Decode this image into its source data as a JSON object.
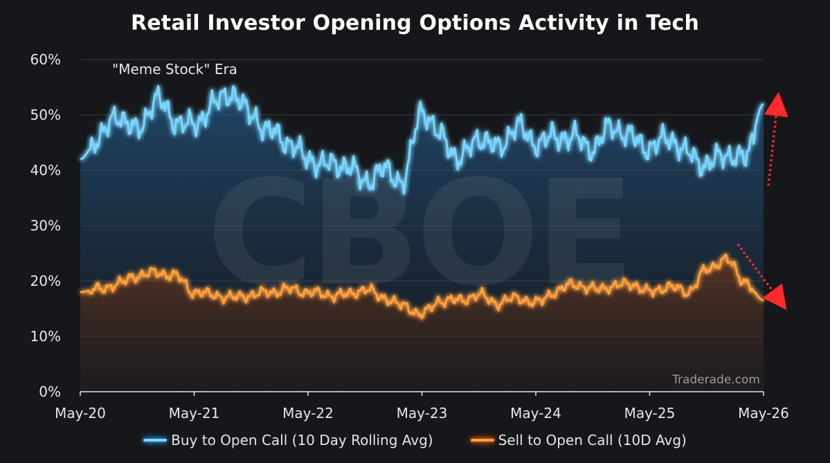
{
  "chart_data": {
    "type": "line",
    "title": "Retail Investor Opening Options Activity in Tech",
    "xlabel": "",
    "ylabel": "",
    "x_ticks": [
      "May-20",
      "May-21",
      "May-22",
      "May-23",
      "May-24",
      "May-25",
      "May-26"
    ],
    "y_ticks": [
      "0%",
      "10%",
      "20%",
      "30%",
      "40%",
      "50%",
      "60%"
    ],
    "xlim": [
      "May-20",
      "May-26"
    ],
    "ylim": [
      0,
      60
    ],
    "grid": true,
    "legend_position": "bottom",
    "annotation": "\"Meme Stock\" Era",
    "watermark": "CBOE",
    "source": "Traderade.com",
    "x": [
      "May-20",
      "Jul-20",
      "Sep-20",
      "Nov-20",
      "Jan-21",
      "Mar-21",
      "May-21",
      "Jul-21",
      "Sep-21",
      "Nov-21",
      "Jan-22",
      "Mar-22",
      "May-22",
      "Jul-22",
      "Sep-22",
      "Nov-22",
      "Jan-23",
      "Mar-23",
      "May-23",
      "Jul-23",
      "Sep-23",
      "Nov-23",
      "Jan-24",
      "Mar-24",
      "May-24",
      "Jul-24",
      "Sep-24",
      "Nov-24",
      "Jan-25",
      "Mar-25",
      "May-25",
      "Jul-25",
      "Sep-25",
      "Nov-25",
      "Jan-26",
      "Mar-26",
      "May-26"
    ],
    "series": [
      {
        "name": "Buy to Open Call (10 Day Rolling Avg)",
        "color": "#7ad6ff",
        "values": [
          42,
          46,
          50,
          47,
          53,
          49,
          48,
          52,
          54,
          50,
          47,
          45,
          42,
          41,
          41,
          38,
          40,
          38,
          51,
          46,
          42,
          46,
          44,
          48,
          45,
          46,
          46,
          44,
          48,
          46,
          44,
          46,
          43,
          41,
          43,
          42,
          52
        ]
      },
      {
        "name": "Sell to Open Call (10D Avg)",
        "color": "#ffa040",
        "values": [
          18,
          18.5,
          19.5,
          21,
          21.5,
          21,
          18,
          17.5,
          17,
          17.5,
          18,
          18.5,
          18,
          17.5,
          17.5,
          18.5,
          17,
          15.5,
          14,
          16.5,
          16.5,
          17.5,
          16,
          17,
          16,
          18,
          19.5,
          18.5,
          19,
          19.5,
          18,
          19,
          18,
          22,
          24,
          20,
          16.5
        ]
      }
    ]
  },
  "legend": {
    "buy_label": "Buy to Open Call (10 Day Rolling Avg)",
    "sell_label": "Sell to Open Call (10D Avg)"
  }
}
